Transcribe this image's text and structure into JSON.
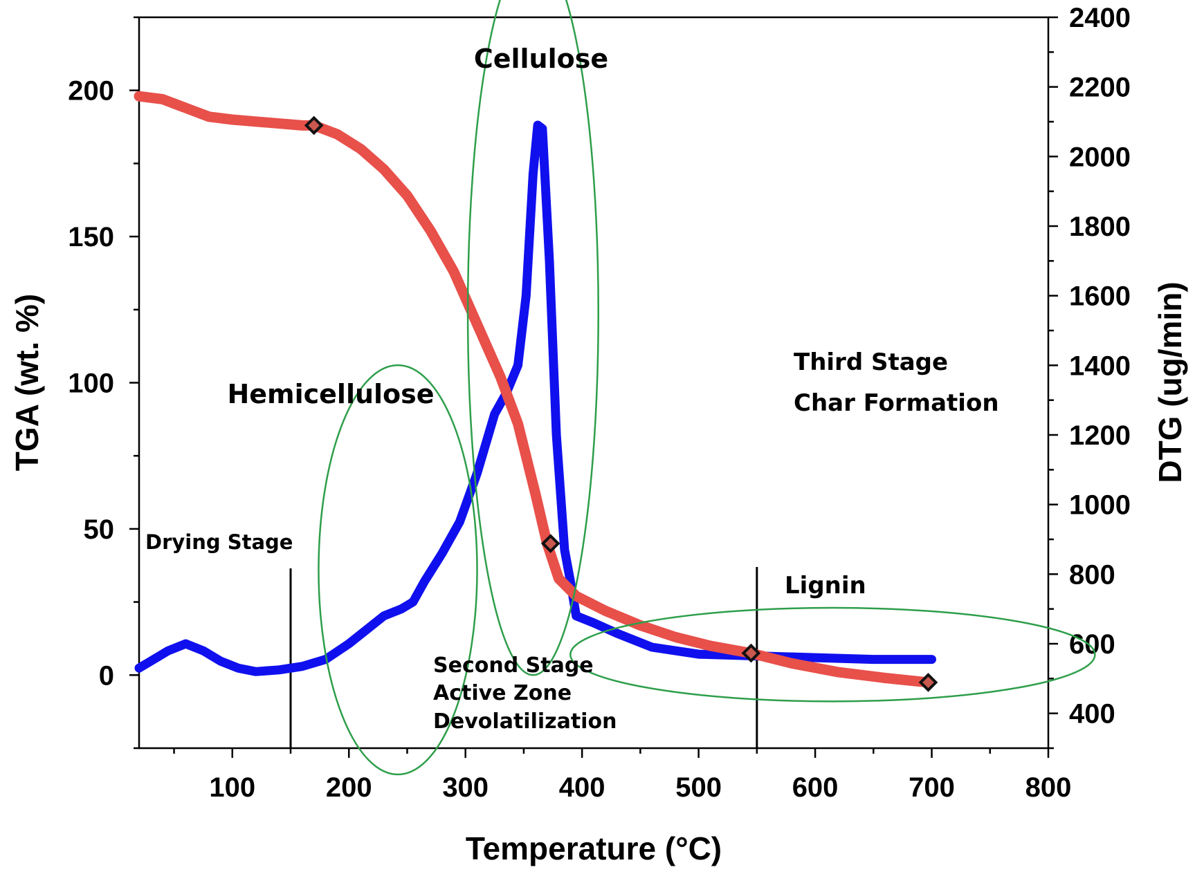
{
  "chart_data": {
    "type": "line",
    "xlabel": "Temperature (°C)",
    "ylabel_left": "TGA (wt. %)",
    "ylabel_right": "DTG (ug/min)",
    "xlim": [
      20,
      800
    ],
    "ylim_left": [
      -25,
      225
    ],
    "ylim_right": [
      300,
      2400
    ],
    "x_ticks": [
      100,
      200,
      300,
      400,
      500,
      600,
      700,
      800
    ],
    "y_left_ticks": [
      0,
      50,
      100,
      150,
      200
    ],
    "y_right_ticks": [
      400,
      600,
      800,
      1000,
      1200,
      1400,
      1600,
      1800,
      2000,
      2200,
      2400
    ],
    "grid": false,
    "series": [
      {
        "axis": "right",
        "color": "#1010ee",
        "x": [
          20,
          30,
          45,
          60,
          75,
          90,
          105,
          120,
          140,
          160,
          180,
          200,
          215,
          230,
          245,
          255,
          265,
          280,
          295,
          310,
          325,
          335,
          345,
          352,
          358,
          362,
          366,
          372,
          378,
          385,
          390,
          395,
          410,
          430,
          460,
          500,
          550,
          600,
          650,
          700
        ],
        "y": [
          530,
          550,
          580,
          600,
          580,
          550,
          530,
          520,
          525,
          535,
          555,
          600,
          640,
          680,
          700,
          720,
          780,
          860,
          950,
          1090,
          1260,
          1320,
          1400,
          1600,
          1950,
          2090,
          2080,
          1700,
          1200,
          870,
          780,
          680,
          660,
          630,
          590,
          570,
          565,
          560,
          555,
          555
        ]
      },
      {
        "axis": "left",
        "color": "#e8504a",
        "x": [
          20,
          40,
          60,
          80,
          100,
          130,
          160,
          170,
          190,
          210,
          230,
          250,
          270,
          290,
          310,
          330,
          345,
          360,
          370,
          380,
          395,
          420,
          450,
          480,
          510,
          545,
          580,
          620,
          660,
          697
        ],
        "y": [
          198,
          197,
          194,
          191,
          190,
          189,
          188,
          188,
          185,
          180,
          173,
          164,
          152,
          138,
          120,
          102,
          86,
          62,
          45,
          33,
          27,
          22,
          17,
          13,
          10,
          7.5,
          4,
          1,
          -1,
          -2.5
        ],
        "markers": [
          {
            "x": 170,
            "y": 188
          },
          {
            "x": 373,
            "y": 45
          },
          {
            "x": 545,
            "y": 7.5
          },
          {
            "x": 697,
            "y": -2.5
          }
        ]
      }
    ],
    "annotations": {
      "cellulose": "Cellulose",
      "hemicellulose": "Hemicellulose",
      "drying": "Drying Stage",
      "second_line1": "Second Stage",
      "second_line2": "Active Zone",
      "second_line3": "Devolatilization",
      "third_line1": "Third Stage",
      "third_line2": "Char Formation",
      "lignin": "Lignin"
    },
    "stage_boundaries_x": [
      150,
      550
    ],
    "ellipse_color": "#2e9e4a"
  }
}
